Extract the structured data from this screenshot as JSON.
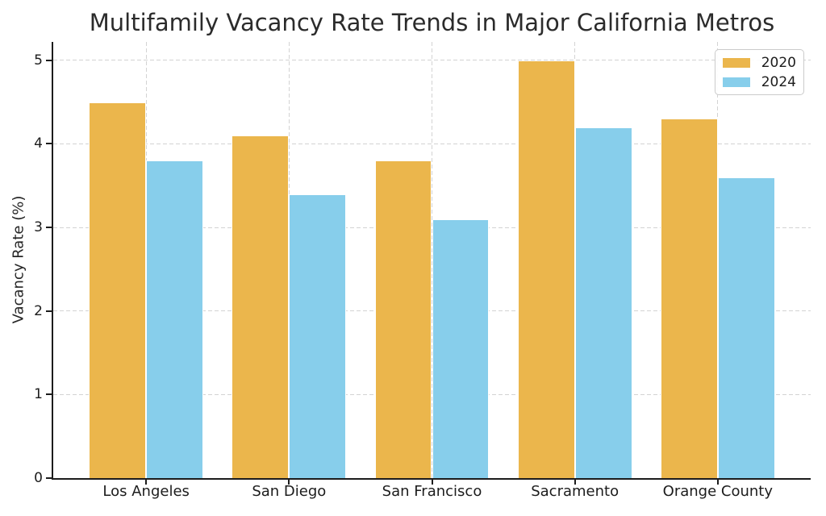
{
  "chart_data": {
    "type": "bar",
    "title": "Multifamily Vacancy Rate Trends in Major California Metros",
    "xlabel": "",
    "ylabel": "Vacancy Rate (%)",
    "categories": [
      "Los Angeles",
      "San Diego",
      "San Francisco",
      "Sacramento",
      "Orange County"
    ],
    "series": [
      {
        "name": "2020",
        "color": "#EBB64C",
        "values": [
          4.5,
          4.1,
          3.8,
          5.0,
          4.3
        ]
      },
      {
        "name": "2024",
        "color": "#87CEEB",
        "values": [
          3.8,
          3.4,
          3.1,
          4.2,
          3.6
        ]
      }
    ],
    "ylim": [
      0,
      5.22
    ],
    "yticks": [
      0,
      1,
      2,
      3,
      4,
      5
    ],
    "bar_width_ratio": 0.4,
    "grid": "dashed",
    "grid_color": "#d3d3d3",
    "legend_position": "upper right",
    "bar_edge_color": "#ffffff",
    "spine_color": "#1c1c1c",
    "text_color": "#262626"
  }
}
